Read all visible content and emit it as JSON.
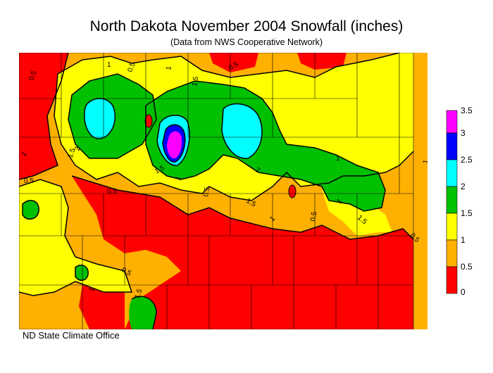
{
  "title": "North Dakota November 2004 Snowfall (inches)",
  "subtitle": "(Data from NWS Cooperative Network)",
  "credit": "ND State Climate Office",
  "legend": {
    "levels": [
      {
        "label": "3.5",
        "color": "#ff00ff"
      },
      {
        "label": "3",
        "color": "#0000ff"
      },
      {
        "label": "2.5",
        "color": "#00ffff"
      },
      {
        "label": "2",
        "color": "#00c000"
      },
      {
        "label": "1.5",
        "color": "#ffff00"
      },
      {
        "label": "1",
        "color": "#ffb000"
      },
      {
        "label": "0.5",
        "color": "#ff0000"
      },
      {
        "label": "0",
        "color": "#ff0000"
      }
    ]
  },
  "contour_labels": [
    "0.5",
    "0.5",
    "1",
    "1",
    "1.5",
    "1.5",
    "2",
    "0.5",
    "1",
    "0.5",
    "1.5",
    "2",
    "1",
    "0.5",
    "1.5",
    "1",
    "0.5",
    "1",
    "0.5",
    "1.5",
    "1",
    "0.5",
    "1",
    "0.5",
    "1",
    "1.5"
  ]
}
